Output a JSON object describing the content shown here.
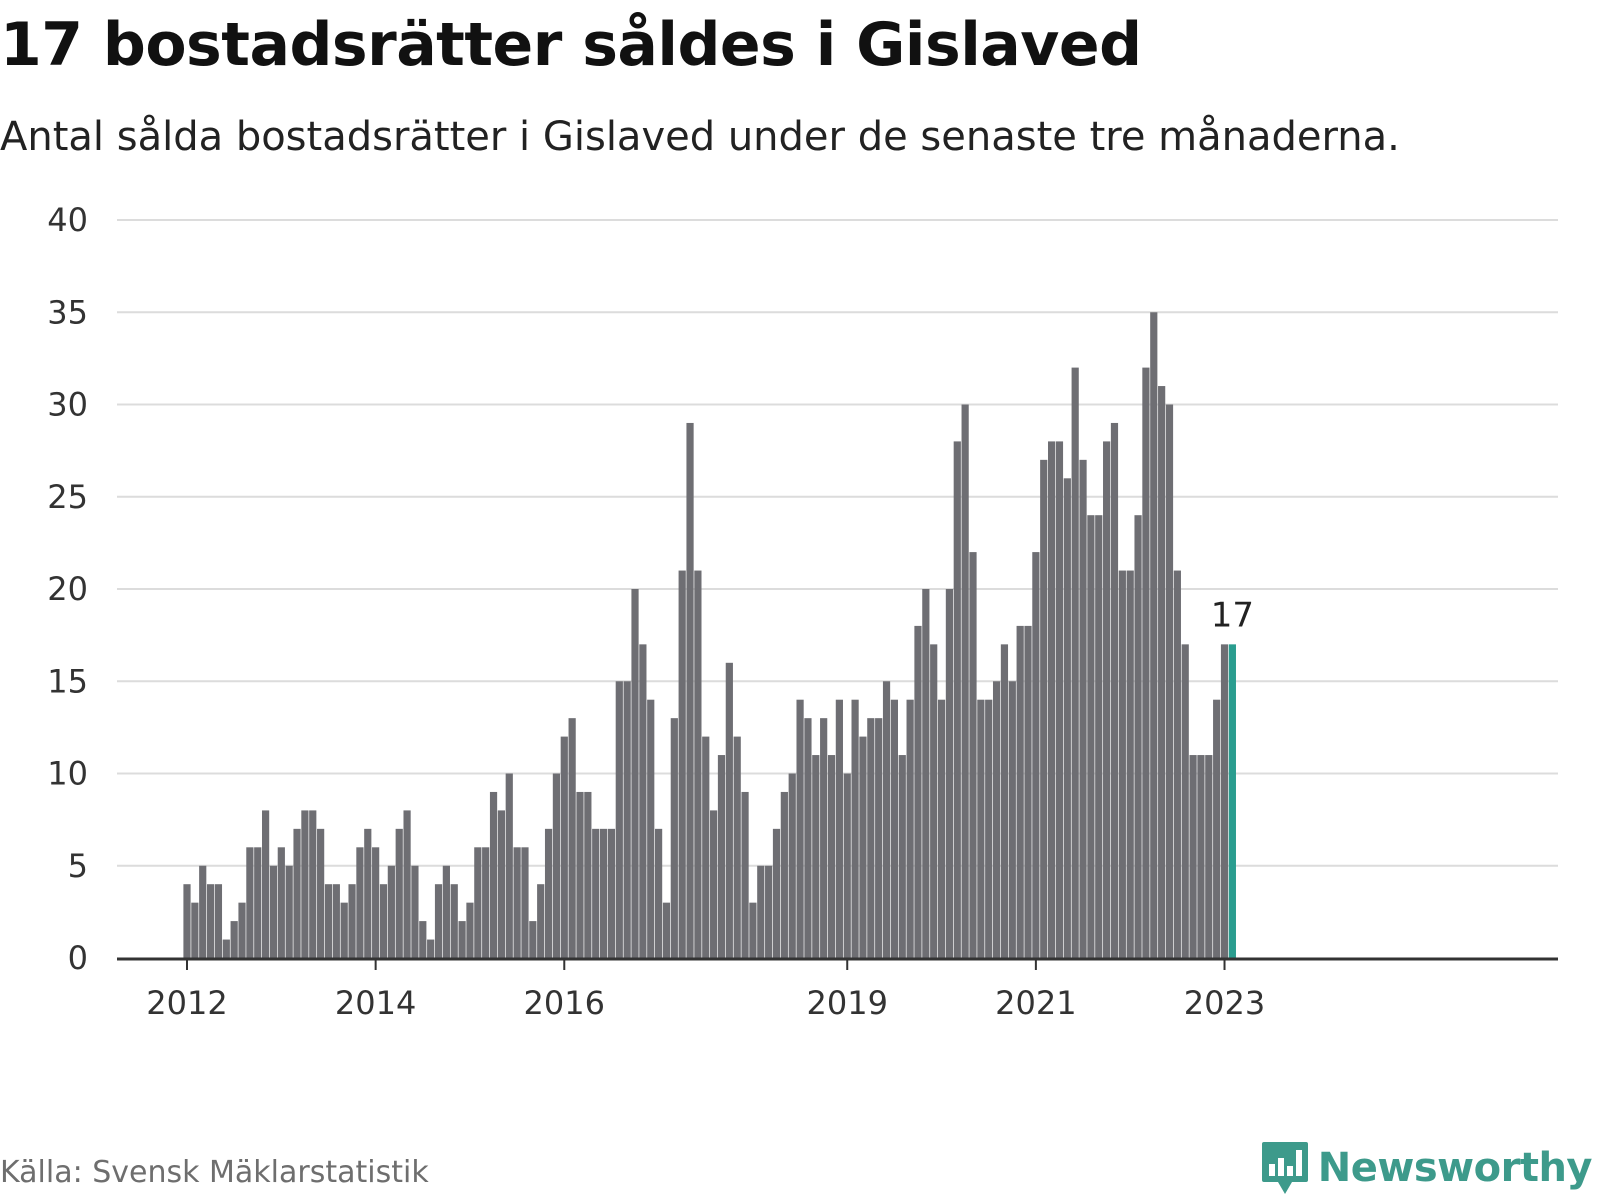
{
  "title": "17 bostadsrätter såldes i Gislaved",
  "subtitle": "Antal sålda bostadsrätter i Gislaved under de senaste tre månaderna.",
  "source": "Källa: Svensk Mäklarstatistik",
  "brand": {
    "name": "Newsworthy",
    "logo_icon": "bar-chart-speech-icon"
  },
  "colors": {
    "bar": "#6e6e73",
    "highlight": "#2a9d8f",
    "grid": "#dcdcdc",
    "axis": "#333333",
    "brand": "#3d9a8b"
  },
  "chart_data": {
    "type": "bar",
    "title": "17 bostadsrätter såldes i Gislaved",
    "xlabel": "",
    "ylabel": "",
    "ylim": [
      0,
      40
    ],
    "yticks": [
      0,
      5,
      10,
      15,
      20,
      25,
      30,
      35,
      40
    ],
    "xtick_labels": [
      {
        "label": "2012",
        "index": 0
      },
      {
        "label": "2014",
        "index": 24
      },
      {
        "label": "2016",
        "index": 48
      },
      {
        "label": "2019",
        "index": 84
      },
      {
        "label": "2021",
        "index": 108
      },
      {
        "label": "2023",
        "index": 132
      }
    ],
    "series": [
      {
        "name": "Sålda bostadsrätter",
        "values": [
          4,
          3,
          5,
          4,
          4,
          1,
          2,
          3,
          6,
          6,
          8,
          5,
          6,
          5,
          7,
          8,
          8,
          7,
          4,
          4,
          3,
          4,
          6,
          7,
          6,
          4,
          5,
          7,
          8,
          5,
          2,
          1,
          4,
          5,
          4,
          2,
          3,
          6,
          6,
          9,
          8,
          10,
          6,
          6,
          2,
          4,
          7,
          10,
          12,
          13,
          9,
          9,
          7,
          7,
          7,
          15,
          15,
          20,
          17,
          14,
          7,
          3,
          13,
          21,
          29,
          21,
          12,
          8,
          11,
          16,
          12,
          9,
          3,
          5,
          5,
          7,
          9,
          10,
          14,
          13,
          11,
          13,
          11,
          14,
          10,
          14,
          12,
          13,
          13,
          15,
          14,
          11,
          14,
          18,
          20,
          17,
          14,
          20,
          28,
          30,
          22,
          14,
          14,
          15,
          17,
          15,
          18,
          18,
          22,
          27,
          28,
          28,
          26,
          32,
          27,
          24,
          24,
          28,
          29,
          21,
          21,
          24,
          32,
          35,
          31,
          30,
          21,
          17,
          11,
          11,
          11,
          14,
          17,
          17
        ]
      }
    ],
    "highlight_index": 133,
    "annotation": {
      "text": "17",
      "index": 133
    }
  }
}
